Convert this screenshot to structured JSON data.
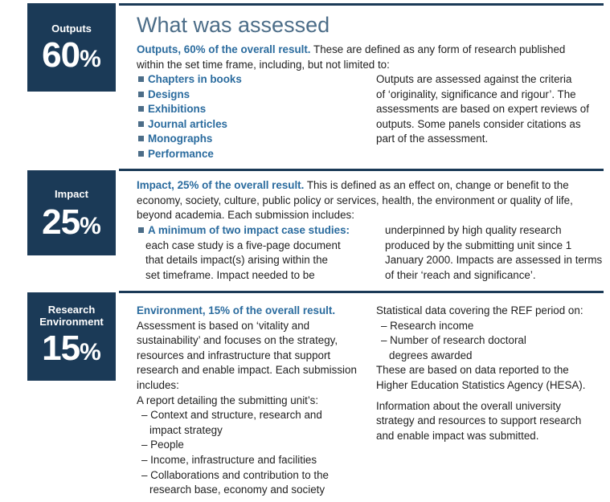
{
  "outputs": {
    "box_label": "Outputs",
    "percent_number": "60",
    "percent_sign": "%",
    "heading": "What was assessed",
    "lead": "Outputs, 60% of the overall result.",
    "intro_rest": " These are defined as any form of research published within the set time frame, including, but not limited to:",
    "types": [
      "Chapters in books",
      "Designs",
      "Exhibitions",
      "Journal articles",
      "Monographs",
      "Performance"
    ],
    "criteria_lines": [
      "Outputs are assessed against the criteria",
      "of ‘originality, significance and rigour’. The",
      "assessments are based on expert reviews of",
      "outputs. Some panels consider citations as",
      "part of the assessment."
    ]
  },
  "impact": {
    "box_label": "Impact",
    "percent_number": "25",
    "percent_sign": "%",
    "lead": "Impact, 25% of the overall result.",
    "intro_rest": " This is defined as an effect on, change or benefit to the economy, society, culture, public policy or services, health, the environment or quality of life, beyond academia. Each submission includes:",
    "bullet": "A minimum of two impact case studies:",
    "left_lines": [
      "each case study is a five-page document",
      "that details impact(s) arising within the",
      "set timeframe. Impact needed to be"
    ],
    "right_lines": [
      "underpinned by high quality research",
      "produced by the submitting unit since 1",
      "January 2000. Impacts are assessed in terms",
      "of their ‘reach and significance’."
    ]
  },
  "environment": {
    "box_label_line1": "Research",
    "box_label_line2": "Environment",
    "percent_number": "15",
    "percent_sign": "%",
    "lead": "Environment, 15% of the overall result.",
    "left_lines": [
      "Assessment is based on ‘vitality and",
      "sustainability’ and focuses on the strategy,",
      "resources and infrastructure that support",
      "research and enable impact. Each submission",
      "includes:"
    ],
    "report_intro": "A report detailing the submitting unit’s:",
    "report_items": [
      [
        "– Context and structure, research and",
        "impact strategy"
      ],
      [
        "– People"
      ],
      [
        "– Income, infrastructure and facilities"
      ],
      [
        "– Collaborations and contribution to the",
        "research base, economy and society"
      ]
    ],
    "stats_intro": "Statistical data covering the REF period on:",
    "stats_items": [
      [
        "– Research income"
      ],
      [
        "– Number of research doctoral",
        "degrees awarded"
      ]
    ],
    "hesa_lines": [
      "These are based on data reported to the",
      "Higher Education Statistics Agency (HESA)."
    ],
    "info_lines": [
      "Information about the overall university",
      "strategy and resources to support research",
      "and enable impact was submitted."
    ]
  }
}
